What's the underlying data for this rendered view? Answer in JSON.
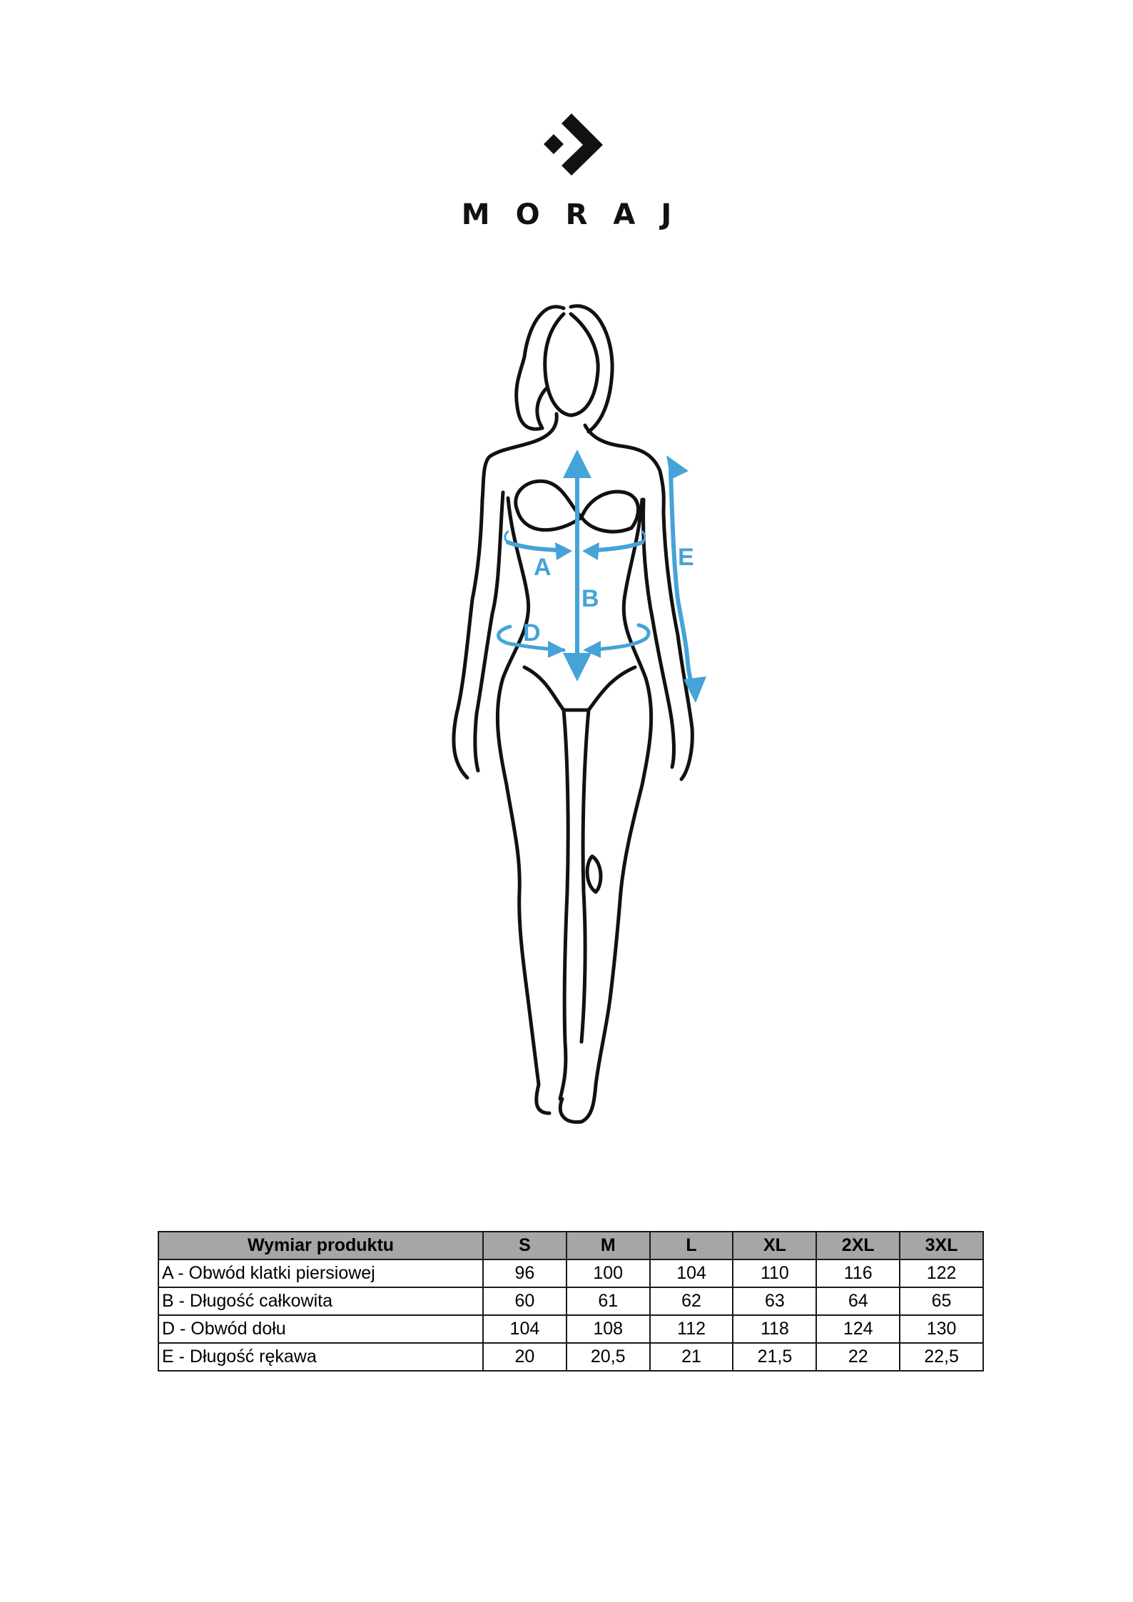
{
  "brand": {
    "name": "MORAJ"
  },
  "figure": {
    "labels": {
      "a": "A",
      "b": "B",
      "d": "D",
      "e": "E"
    },
    "accent_color": "#45a3d8"
  },
  "size_table": {
    "header": [
      "Wymiar produktu",
      "S",
      "M",
      "L",
      "XL",
      "2XL",
      "3XL"
    ],
    "rows": [
      {
        "label": "A - Obwód klatki piersiowej",
        "values": [
          "96",
          "100",
          "104",
          "110",
          "116",
          "122"
        ]
      },
      {
        "label": "B - Długość całkowita",
        "values": [
          "60",
          "61",
          "62",
          "63",
          "64",
          "65"
        ]
      },
      {
        "label": "D - Obwód dołu",
        "values": [
          "104",
          "108",
          "112",
          "118",
          "124",
          "130"
        ]
      },
      {
        "label": "E - Długość rękawa",
        "values": [
          "20",
          "20,5",
          "21",
          "21,5",
          "22",
          "22,5"
        ]
      }
    ]
  }
}
